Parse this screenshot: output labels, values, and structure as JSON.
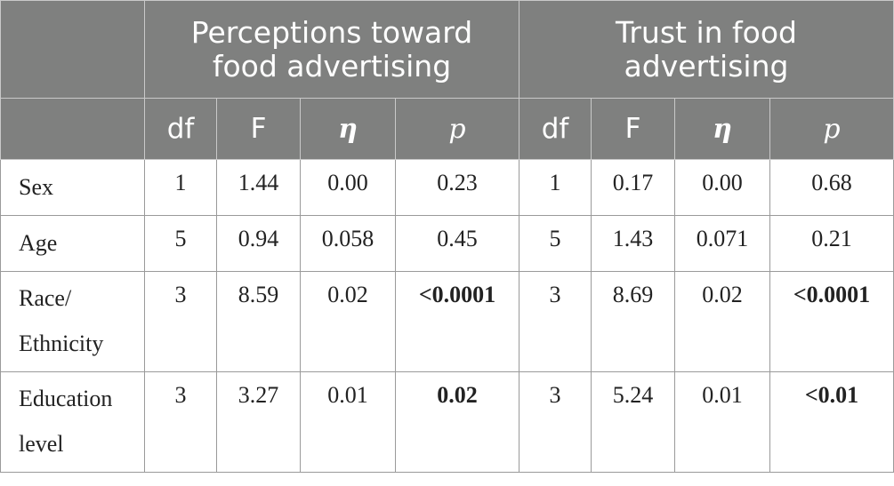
{
  "table": {
    "group_headers": [
      "Perceptions toward food advertising",
      "Trust in food advertising"
    ],
    "group_header_lines": [
      [
        "Perceptions toward",
        "food advertising"
      ],
      [
        "Trust in food",
        "advertising"
      ]
    ],
    "column_headers": [
      "df",
      "F",
      "η",
      "p",
      "df",
      "F",
      "η",
      "p"
    ],
    "rows": [
      {
        "label_lines": [
          "Sex"
        ],
        "cells": [
          "1",
          "1.44",
          "0.00",
          "0.23",
          "1",
          "0.17",
          "0.00",
          "0.68"
        ],
        "bold": [
          false,
          false,
          false,
          false,
          false,
          false,
          false,
          false
        ]
      },
      {
        "label_lines": [
          "Age"
        ],
        "cells": [
          "5",
          "0.94",
          "0.058",
          "0.45",
          "5",
          "1.43",
          "0.071",
          "0.21"
        ],
        "bold": [
          false,
          false,
          false,
          false,
          false,
          false,
          false,
          false
        ]
      },
      {
        "label_lines": [
          "Race/",
          "Ethnicity"
        ],
        "cells": [
          "3",
          "8.59",
          "0.02",
          "<0.0001",
          "3",
          "8.69",
          "0.02",
          "<0.0001"
        ],
        "bold": [
          false,
          false,
          false,
          true,
          false,
          false,
          false,
          true
        ]
      },
      {
        "label_lines": [
          "Education",
          "level"
        ],
        "cells": [
          "3",
          "3.27",
          "0.01",
          "0.02",
          "3",
          "5.24",
          "0.01",
          "<0.01"
        ],
        "bold": [
          false,
          false,
          false,
          true,
          false,
          false,
          false,
          true
        ]
      }
    ]
  }
}
